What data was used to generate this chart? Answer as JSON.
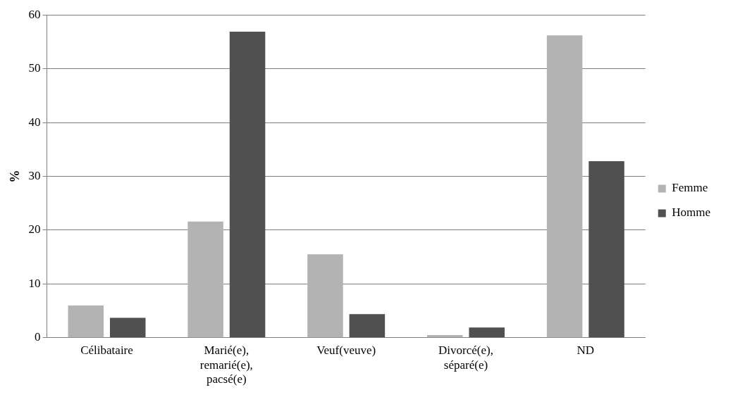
{
  "chart_data": {
    "type": "bar",
    "ylabel": "%",
    "categories": [
      "Célibataire",
      "Marié(e), remarié(e), pacsé(e)",
      "Veuf(veuve)",
      "Divorcé(e), séparé(e)",
      "ND"
    ],
    "series": [
      {
        "name": "Femme",
        "color": "#b3b3b3",
        "values": [
          6.0,
          21.6,
          15.5,
          0.5,
          56.2
        ]
      },
      {
        "name": "Homme",
        "color": "#505050",
        "values": [
          3.7,
          56.9,
          4.4,
          1.9,
          32.8
        ]
      }
    ],
    "ylim": [
      0,
      60
    ],
    "yticks": [
      0,
      10,
      20,
      30,
      40,
      50,
      60
    ],
    "grid": "y",
    "legend": "right"
  }
}
